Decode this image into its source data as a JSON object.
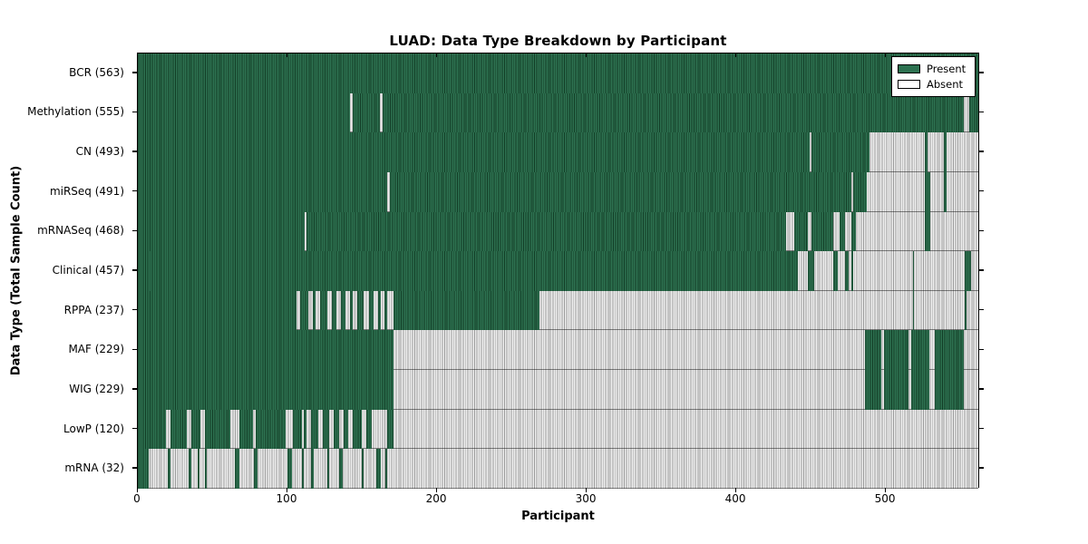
{
  "chart_data": {
    "type": "heatmap",
    "title": "LUAD: Data Type Breakdown by Participant",
    "xlabel": "Participant",
    "ylabel": "Data Type (Total Sample Count)",
    "xlim": [
      0,
      563
    ],
    "xticks": [
      0,
      100,
      200,
      300,
      400,
      500
    ],
    "grid": false,
    "legend_position": "upper right",
    "legend": [
      {
        "label": "Present",
        "color": "#2d7150"
      },
      {
        "label": "Absent",
        "color": "#ffffff"
      }
    ],
    "colors": {
      "present": "#2d7150",
      "absent": "#ededed",
      "cell_edge": "#123d26"
    },
    "rows": [
      {
        "name": "BCR",
        "count": 563,
        "label": "BCR (563)",
        "present_segments": [
          [
            0,
            563
          ]
        ]
      },
      {
        "name": "Methylation",
        "count": 555,
        "label": "Methylation (555)",
        "present_segments": [
          [
            0,
            142
          ],
          [
            144,
            162
          ],
          [
            164,
            553
          ],
          [
            557,
            563
          ]
        ]
      },
      {
        "name": "CN",
        "count": 493,
        "label": "CN (493)",
        "present_segments": [
          [
            0,
            450
          ],
          [
            451,
            490
          ],
          [
            527,
            529
          ],
          [
            540,
            542
          ]
        ]
      },
      {
        "name": "miRSeq",
        "count": 491,
        "label": "miRSeq (491)",
        "present_segments": [
          [
            0,
            167
          ],
          [
            169,
            478
          ],
          [
            479,
            488
          ],
          [
            527,
            531
          ],
          [
            540,
            542
          ]
        ]
      },
      {
        "name": "mRNASeq",
        "count": 468,
        "label": "mRNASeq (468)",
        "present_segments": [
          [
            0,
            112
          ],
          [
            113,
            434
          ],
          [
            440,
            449
          ],
          [
            451,
            466
          ],
          [
            470,
            474
          ],
          [
            478,
            481
          ],
          [
            527,
            531
          ]
        ]
      },
      {
        "name": "Clinical",
        "count": 457,
        "label": "Clinical (457)",
        "present_segments": [
          [
            0,
            442
          ],
          [
            449,
            453
          ],
          [
            466,
            469
          ],
          [
            474,
            476
          ],
          [
            478,
            479
          ],
          [
            519,
            520
          ],
          [
            554,
            558
          ]
        ]
      },
      {
        "name": "RPPA",
        "count": 237,
        "label": "RPPA (237)",
        "present_segments": [
          [
            0,
            106
          ],
          [
            109,
            114
          ],
          [
            117,
            119
          ],
          [
            122,
            127
          ],
          [
            130,
            133
          ],
          [
            136,
            139
          ],
          [
            142,
            144
          ],
          [
            147,
            151
          ],
          [
            155,
            158
          ],
          [
            161,
            163
          ],
          [
            165,
            167
          ],
          [
            171,
            269
          ],
          [
            519,
            520
          ],
          [
            554,
            555
          ]
        ]
      },
      {
        "name": "MAF",
        "count": 229,
        "label": "MAF (229)",
        "present_segments": [
          [
            0,
            171
          ],
          [
            487,
            498
          ],
          [
            500,
            516
          ],
          [
            518,
            530
          ],
          [
            534,
            553
          ]
        ]
      },
      {
        "name": "WIG",
        "count": 229,
        "label": "WIG (229)",
        "present_segments": [
          [
            0,
            171
          ],
          [
            487,
            498
          ],
          [
            500,
            516
          ],
          [
            518,
            530
          ],
          [
            534,
            553
          ]
        ]
      },
      {
        "name": "LowP",
        "count": 120,
        "label": "LowP (120)",
        "present_segments": [
          [
            0,
            19
          ],
          [
            22,
            33
          ],
          [
            36,
            42
          ],
          [
            45,
            62
          ],
          [
            68,
            77
          ],
          [
            79,
            99
          ],
          [
            104,
            110
          ],
          [
            111,
            113
          ],
          [
            116,
            121
          ],
          [
            124,
            128
          ],
          [
            131,
            135
          ],
          [
            138,
            141
          ],
          [
            144,
            150
          ],
          [
            153,
            157
          ],
          [
            167,
            171
          ]
        ]
      },
      {
        "name": "mRNA",
        "count": 32,
        "label": "mRNA (32)",
        "present_segments": [
          [
            0,
            7
          ],
          [
            20,
            22
          ],
          [
            34,
            36
          ],
          [
            40,
            41
          ],
          [
            45,
            46
          ],
          [
            65,
            68
          ],
          [
            78,
            80
          ],
          [
            100,
            103
          ],
          [
            110,
            111
          ],
          [
            116,
            118
          ],
          [
            127,
            128
          ],
          [
            135,
            137
          ],
          [
            150,
            151
          ],
          [
            160,
            163
          ],
          [
            166,
            167
          ]
        ]
      }
    ]
  }
}
